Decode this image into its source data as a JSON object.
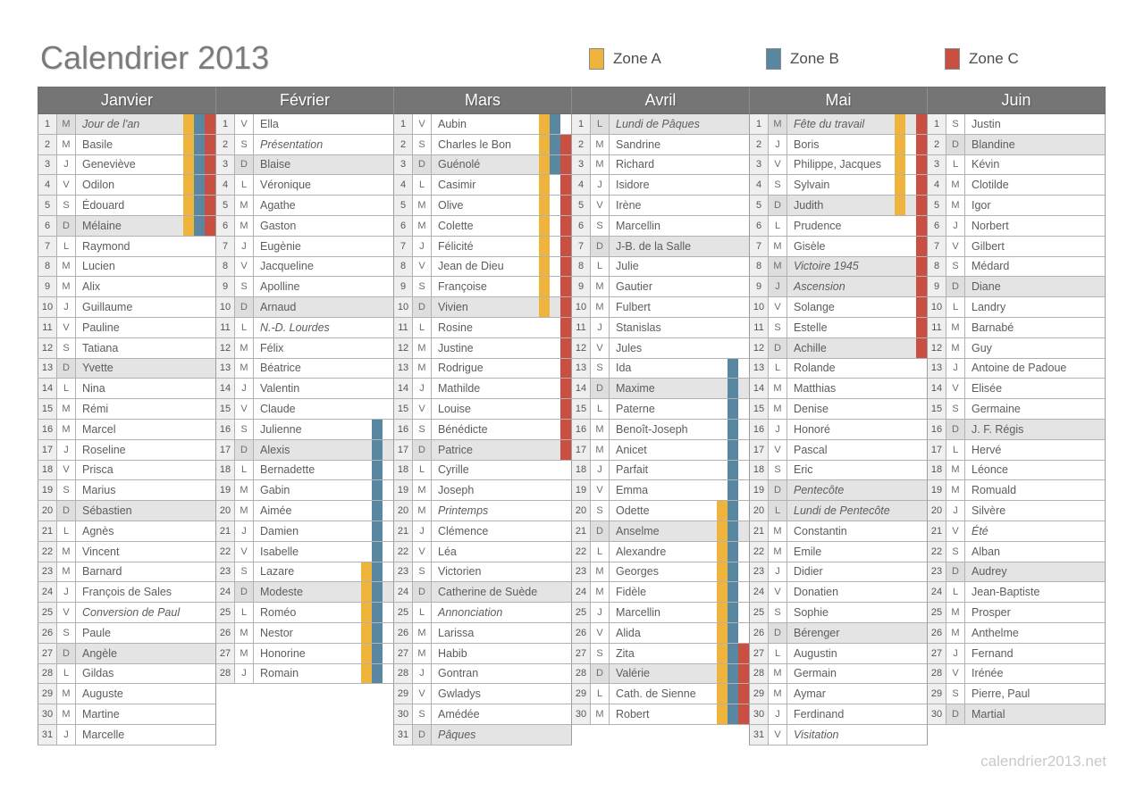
{
  "title": "Calendrier 2013",
  "watermark": "calendrier2013.net",
  "legend": {
    "items": [
      {
        "key": "A",
        "label": "Zone A",
        "color": "#efb43c"
      },
      {
        "key": "B",
        "label": "Zone B",
        "color": "#5987a2"
      },
      {
        "key": "C",
        "label": "Zone C",
        "color": "#c94f43"
      }
    ]
  },
  "colors": {
    "zone_a": "#efb43c",
    "zone_b": "#5987a2",
    "zone_c": "#c94f43",
    "month_header_bg": "#757575",
    "month_header_text": "#ffffff",
    "highlight_row_bg": "#e4e4e4",
    "number_cell_bg": "#efefef",
    "grid_border": "#a5a5a5",
    "title_text": "#7b7b7b",
    "watermark_text": "#c9c9c9"
  },
  "day_format": [
    "number",
    "weekday_letter",
    "label",
    "flags(i=italic,h=highlighted)",
    "zones"
  ],
  "months": [
    {
      "name": "Janvier",
      "days": [
        [
          1,
          "M",
          "Jour de l'an",
          "ih",
          "ABC"
        ],
        [
          2,
          "M",
          "Basile",
          "",
          "ABC"
        ],
        [
          3,
          "J",
          "Geneviève",
          "",
          "ABC"
        ],
        [
          4,
          "V",
          "Odilon",
          "",
          "ABC"
        ],
        [
          5,
          "S",
          "Édouard",
          "",
          "ABC"
        ],
        [
          6,
          "D",
          "Mélaine",
          "h",
          "ABC"
        ],
        [
          7,
          "L",
          "Raymond",
          "",
          ""
        ],
        [
          8,
          "M",
          "Lucien",
          "",
          ""
        ],
        [
          9,
          "M",
          "Alix",
          "",
          ""
        ],
        [
          10,
          "J",
          "Guillaume",
          "",
          ""
        ],
        [
          11,
          "V",
          "Pauline",
          "",
          ""
        ],
        [
          12,
          "S",
          "Tatiana",
          "",
          ""
        ],
        [
          13,
          "D",
          "Yvette",
          "h",
          ""
        ],
        [
          14,
          "L",
          "Nina",
          "",
          ""
        ],
        [
          15,
          "M",
          "Rémi",
          "",
          ""
        ],
        [
          16,
          "M",
          "Marcel",
          "",
          ""
        ],
        [
          17,
          "J",
          "Roseline",
          "",
          ""
        ],
        [
          18,
          "V",
          "Prisca",
          "",
          ""
        ],
        [
          19,
          "S",
          "Marius",
          "",
          ""
        ],
        [
          20,
          "D",
          "Sébastien",
          "h",
          ""
        ],
        [
          21,
          "L",
          "Agnès",
          "",
          ""
        ],
        [
          22,
          "M",
          "Vincent",
          "",
          ""
        ],
        [
          23,
          "M",
          "Barnard",
          "",
          ""
        ],
        [
          24,
          "J",
          "François de Sales",
          "",
          ""
        ],
        [
          25,
          "V",
          "Conversion de Paul",
          "i",
          ""
        ],
        [
          26,
          "S",
          "Paule",
          "",
          ""
        ],
        [
          27,
          "D",
          "Angèle",
          "h",
          ""
        ],
        [
          28,
          "L",
          "Gildas",
          "",
          ""
        ],
        [
          29,
          "M",
          "Auguste",
          "",
          ""
        ],
        [
          30,
          "M",
          "Martine",
          "",
          ""
        ],
        [
          31,
          "J",
          "Marcelle",
          "",
          ""
        ]
      ]
    },
    {
      "name": "Février",
      "days": [
        [
          1,
          "V",
          "Ella",
          "",
          ""
        ],
        [
          2,
          "S",
          "Présentation",
          "i",
          ""
        ],
        [
          3,
          "D",
          "Blaise",
          "h",
          ""
        ],
        [
          4,
          "L",
          "Véronique",
          "",
          ""
        ],
        [
          5,
          "M",
          "Agathe",
          "",
          ""
        ],
        [
          6,
          "M",
          "Gaston",
          "",
          ""
        ],
        [
          7,
          "J",
          "Eugènie",
          "",
          ""
        ],
        [
          8,
          "V",
          "Jacqueline",
          "",
          ""
        ],
        [
          9,
          "S",
          "Apolline",
          "",
          ""
        ],
        [
          10,
          "D",
          "Arnaud",
          "h",
          ""
        ],
        [
          11,
          "L",
          "N.-D. Lourdes",
          "i",
          ""
        ],
        [
          12,
          "M",
          "Félix",
          "",
          ""
        ],
        [
          13,
          "M",
          "Béatrice",
          "",
          ""
        ],
        [
          14,
          "J",
          "Valentin",
          "",
          ""
        ],
        [
          15,
          "V",
          "Claude",
          "",
          ""
        ],
        [
          16,
          "S",
          "Julienne",
          "",
          "B"
        ],
        [
          17,
          "D",
          "Alexis",
          "h",
          "B"
        ],
        [
          18,
          "L",
          "Bernadette",
          "",
          "B"
        ],
        [
          19,
          "M",
          "Gabin",
          "",
          "B"
        ],
        [
          20,
          "M",
          "Aimée",
          "",
          "B"
        ],
        [
          21,
          "J",
          "Damien",
          "",
          "B"
        ],
        [
          22,
          "V",
          "Isabelle",
          "",
          "B"
        ],
        [
          23,
          "S",
          "Lazare",
          "",
          "AB"
        ],
        [
          24,
          "D",
          "Modeste",
          "h",
          "AB"
        ],
        [
          25,
          "L",
          "Roméo",
          "",
          "AB"
        ],
        [
          26,
          "M",
          "Nestor",
          "",
          "AB"
        ],
        [
          27,
          "M",
          "Honorine",
          "",
          "AB"
        ],
        [
          28,
          "J",
          "Romain",
          "",
          "AB"
        ]
      ]
    },
    {
      "name": "Mars",
      "days": [
        [
          1,
          "V",
          "Aubin",
          "",
          "AB"
        ],
        [
          2,
          "S",
          "Charles le Bon",
          "",
          "ABC"
        ],
        [
          3,
          "D",
          "Guénolé",
          "h",
          "ABC"
        ],
        [
          4,
          "L",
          "Casimir",
          "",
          "AC"
        ],
        [
          5,
          "M",
          "Olive",
          "",
          "AC"
        ],
        [
          6,
          "M",
          "Colette",
          "",
          "AC"
        ],
        [
          7,
          "J",
          "Félicité",
          "",
          "AC"
        ],
        [
          8,
          "V",
          "Jean de Dieu",
          "",
          "AC"
        ],
        [
          9,
          "S",
          "Françoise",
          "",
          "AC"
        ],
        [
          10,
          "D",
          "Vivien",
          "h",
          "AC"
        ],
        [
          11,
          "L",
          "Rosine",
          "",
          "C"
        ],
        [
          12,
          "M",
          "Justine",
          "",
          "C"
        ],
        [
          13,
          "M",
          "Rodrigue",
          "",
          "C"
        ],
        [
          14,
          "J",
          "Mathilde",
          "",
          "C"
        ],
        [
          15,
          "V",
          "Louise",
          "",
          "C"
        ],
        [
          16,
          "S",
          "Bénédicte",
          "",
          "C"
        ],
        [
          17,
          "D",
          "Patrice",
          "h",
          "C"
        ],
        [
          18,
          "L",
          "Cyrille",
          "",
          ""
        ],
        [
          19,
          "M",
          "Joseph",
          "",
          ""
        ],
        [
          20,
          "M",
          "Printemps",
          "i",
          ""
        ],
        [
          21,
          "J",
          "Clémence",
          "",
          ""
        ],
        [
          22,
          "V",
          "Léa",
          "",
          ""
        ],
        [
          23,
          "S",
          "Victorien",
          "",
          ""
        ],
        [
          24,
          "D",
          "Catherine de Suède",
          "h",
          ""
        ],
        [
          25,
          "L",
          "Annonciation",
          "i",
          ""
        ],
        [
          26,
          "M",
          "Larissa",
          "",
          ""
        ],
        [
          27,
          "M",
          "Habib",
          "",
          ""
        ],
        [
          28,
          "J",
          "Gontran",
          "",
          ""
        ],
        [
          29,
          "V",
          "Gwladys",
          "",
          ""
        ],
        [
          30,
          "S",
          "Amédée",
          "",
          ""
        ],
        [
          31,
          "D",
          "Pâques",
          "ih",
          ""
        ]
      ]
    },
    {
      "name": "Avril",
      "days": [
        [
          1,
          "L",
          "Lundi de Pâques",
          "ih",
          ""
        ],
        [
          2,
          "M",
          "Sandrine",
          "",
          ""
        ],
        [
          3,
          "M",
          "Richard",
          "",
          ""
        ],
        [
          4,
          "J",
          "Isidore",
          "",
          ""
        ],
        [
          5,
          "V",
          "Irène",
          "",
          ""
        ],
        [
          6,
          "S",
          "Marcellin",
          "",
          ""
        ],
        [
          7,
          "D",
          "J-B. de la Salle",
          "h",
          ""
        ],
        [
          8,
          "L",
          "Julie",
          "",
          ""
        ],
        [
          9,
          "M",
          "Gautier",
          "",
          ""
        ],
        [
          10,
          "M",
          "Fulbert",
          "",
          ""
        ],
        [
          11,
          "J",
          "Stanislas",
          "",
          ""
        ],
        [
          12,
          "V",
          "Jules",
          "",
          ""
        ],
        [
          13,
          "S",
          "Ida",
          "",
          "B"
        ],
        [
          14,
          "D",
          "Maxime",
          "h",
          "B"
        ],
        [
          15,
          "L",
          "Paterne",
          "",
          "B"
        ],
        [
          16,
          "M",
          "Benoît-Joseph",
          "",
          "B"
        ],
        [
          17,
          "M",
          "Anicet",
          "",
          "B"
        ],
        [
          18,
          "J",
          "Parfait",
          "",
          "B"
        ],
        [
          19,
          "V",
          "Emma",
          "",
          "B"
        ],
        [
          20,
          "S",
          "Odette",
          "",
          "AB"
        ],
        [
          21,
          "D",
          "Anselme",
          "h",
          "AB"
        ],
        [
          22,
          "L",
          "Alexandre",
          "",
          "AB"
        ],
        [
          23,
          "M",
          "Georges",
          "",
          "AB"
        ],
        [
          24,
          "M",
          "Fidèle",
          "",
          "AB"
        ],
        [
          25,
          "J",
          "Marcellin",
          "",
          "AB"
        ],
        [
          26,
          "V",
          "Alida",
          "",
          "AB"
        ],
        [
          27,
          "S",
          "Zita",
          "",
          "ABC"
        ],
        [
          28,
          "D",
          "Valérie",
          "h",
          "ABC"
        ],
        [
          29,
          "L",
          "Cath. de Sienne",
          "",
          "ABC"
        ],
        [
          30,
          "M",
          "Robert",
          "",
          "ABC"
        ]
      ]
    },
    {
      "name": "Mai",
      "days": [
        [
          1,
          "M",
          "Fête du travail",
          "ih",
          "AC"
        ],
        [
          2,
          "J",
          "Boris",
          "",
          "AC"
        ],
        [
          3,
          "V",
          "Philippe, Jacques",
          "",
          "AC"
        ],
        [
          4,
          "S",
          "Sylvain",
          "",
          "AC"
        ],
        [
          5,
          "D",
          "Judith",
          "h",
          "AC"
        ],
        [
          6,
          "L",
          "Prudence",
          "",
          "C"
        ],
        [
          7,
          "M",
          "Gisèle",
          "",
          "C"
        ],
        [
          8,
          "M",
          "Victoire 1945",
          "ih",
          "C"
        ],
        [
          9,
          "J",
          "Ascension",
          "ih",
          "C"
        ],
        [
          10,
          "V",
          "Solange",
          "",
          "C"
        ],
        [
          11,
          "S",
          "Estelle",
          "",
          "C"
        ],
        [
          12,
          "D",
          "Achille",
          "h",
          "C"
        ],
        [
          13,
          "L",
          "Rolande",
          "",
          ""
        ],
        [
          14,
          "M",
          "Matthias",
          "",
          ""
        ],
        [
          15,
          "M",
          "Denise",
          "",
          ""
        ],
        [
          16,
          "J",
          "Honoré",
          "",
          ""
        ],
        [
          17,
          "V",
          "Pascal",
          "",
          ""
        ],
        [
          18,
          "S",
          "Eric",
          "",
          ""
        ],
        [
          19,
          "D",
          "Pentecôte",
          "ih",
          ""
        ],
        [
          20,
          "L",
          "Lundi de Pentecôte",
          "ih",
          ""
        ],
        [
          21,
          "M",
          "Constantin",
          "",
          ""
        ],
        [
          22,
          "M",
          "Emile",
          "",
          ""
        ],
        [
          23,
          "J",
          "Didier",
          "",
          ""
        ],
        [
          24,
          "V",
          "Donatien",
          "",
          ""
        ],
        [
          25,
          "S",
          "Sophie",
          "",
          ""
        ],
        [
          26,
          "D",
          "Bérenger",
          "h",
          ""
        ],
        [
          27,
          "L",
          "Augustin",
          "",
          ""
        ],
        [
          28,
          "M",
          "Germain",
          "",
          ""
        ],
        [
          29,
          "M",
          "Aymar",
          "",
          ""
        ],
        [
          30,
          "J",
          "Ferdinand",
          "",
          ""
        ],
        [
          31,
          "V",
          "Visitation",
          "i",
          ""
        ]
      ]
    },
    {
      "name": "Juin",
      "days": [
        [
          1,
          "S",
          "Justin",
          "",
          ""
        ],
        [
          2,
          "D",
          "Blandine",
          "h",
          ""
        ],
        [
          3,
          "L",
          "Kévin",
          "",
          ""
        ],
        [
          4,
          "M",
          "Clotilde",
          "",
          ""
        ],
        [
          5,
          "M",
          "Igor",
          "",
          ""
        ],
        [
          6,
          "J",
          "Norbert",
          "",
          ""
        ],
        [
          7,
          "V",
          "Gilbert",
          "",
          ""
        ],
        [
          8,
          "S",
          "Médard",
          "",
          ""
        ],
        [
          9,
          "D",
          "Diane",
          "h",
          ""
        ],
        [
          10,
          "L",
          "Landry",
          "",
          ""
        ],
        [
          11,
          "M",
          "Barnabé",
          "",
          ""
        ],
        [
          12,
          "M",
          "Guy",
          "",
          ""
        ],
        [
          13,
          "J",
          "Antoine de Padoue",
          "",
          ""
        ],
        [
          14,
          "V",
          "Elisée",
          "",
          ""
        ],
        [
          15,
          "S",
          "Germaine",
          "",
          ""
        ],
        [
          16,
          "D",
          "J. F. Régis",
          "h",
          ""
        ],
        [
          17,
          "L",
          "Hervé",
          "",
          ""
        ],
        [
          18,
          "M",
          "Léonce",
          "",
          ""
        ],
        [
          19,
          "M",
          "Romuald",
          "",
          ""
        ],
        [
          20,
          "J",
          "Silvère",
          "",
          ""
        ],
        [
          21,
          "V",
          "Été",
          "i",
          ""
        ],
        [
          22,
          "S",
          "Alban",
          "",
          ""
        ],
        [
          23,
          "D",
          "Audrey",
          "h",
          ""
        ],
        [
          24,
          "L",
          "Jean-Baptiste",
          "",
          ""
        ],
        [
          25,
          "M",
          "Prosper",
          "",
          ""
        ],
        [
          26,
          "M",
          "Anthelme",
          "",
          ""
        ],
        [
          27,
          "J",
          "Fernand",
          "",
          ""
        ],
        [
          28,
          "V",
          "Irénée",
          "",
          ""
        ],
        [
          29,
          "S",
          "Pierre, Paul",
          "",
          ""
        ],
        [
          30,
          "D",
          "Martial",
          "h",
          ""
        ]
      ]
    }
  ]
}
